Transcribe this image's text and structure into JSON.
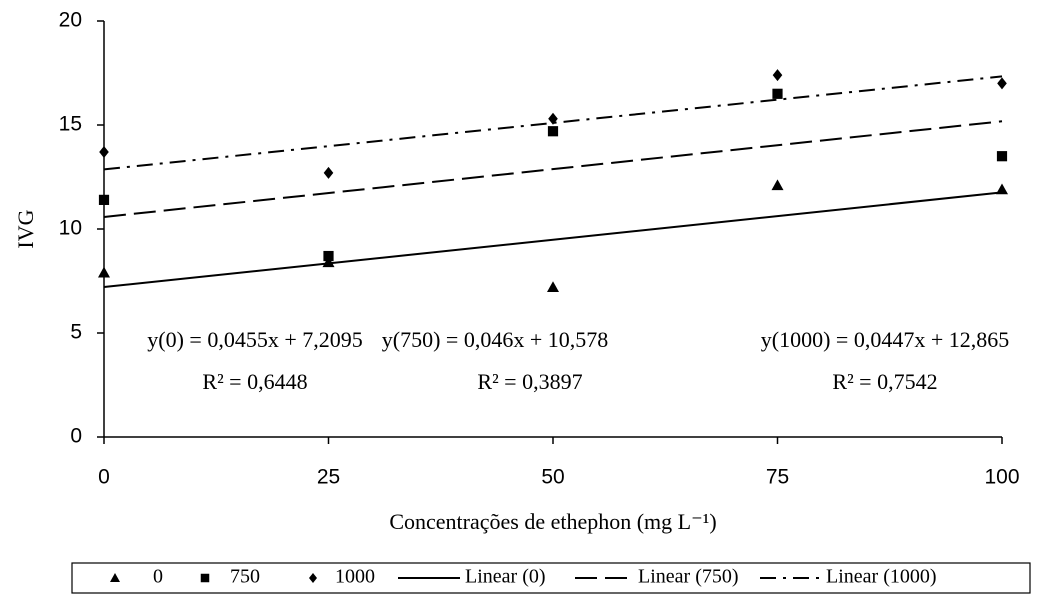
{
  "chart_data": {
    "type": "scatter",
    "x_label": "Concentrações de ethephon (mg L⁻¹)",
    "y_label": "IVG",
    "xlim": [
      0,
      100
    ],
    "xticks": [
      0,
      25,
      50,
      75,
      100
    ],
    "ylim": [
      0,
      20
    ],
    "yticks": [
      0,
      5,
      10,
      15,
      20
    ],
    "color": "#000000",
    "legend": "bottom",
    "series": [
      {
        "name": "0",
        "marker": "triangle",
        "x": [
          0,
          25,
          50,
          75,
          100
        ],
        "values": [
          7.9,
          8.4,
          7.2,
          12.1,
          11.9
        ]
      },
      {
        "name": "750",
        "marker": "square",
        "x": [
          0,
          25,
          50,
          75,
          100
        ],
        "values": [
          11.4,
          8.7,
          14.7,
          16.5,
          13.5
        ]
      },
      {
        "name": "1000",
        "marker": "diamond",
        "x": [
          0,
          25,
          50,
          75,
          100
        ],
        "values": [
          13.7,
          12.7,
          15.3,
          17.4,
          17.0
        ]
      }
    ],
    "trendlines": [
      {
        "name": "Linear (0)",
        "dash": "solid",
        "slope": 0.0455,
        "intercept": 7.2095,
        "equation": "y(0) = 0,0455x + 7,2095",
        "r2": "R² = 0,6448"
      },
      {
        "name": "Linear (750)",
        "dash": "dashed",
        "slope": 0.046,
        "intercept": 10.578,
        "equation": "y(750) = 0,046x + 10,578",
        "r2": "R² = 0,3897"
      },
      {
        "name": "Linear (1000)",
        "dash": "dashdot",
        "slope": 0.0447,
        "intercept": 12.865,
        "equation": "y(1000) = 0,0447x + 12,865",
        "r2": "R² = 0,7542"
      }
    ]
  }
}
